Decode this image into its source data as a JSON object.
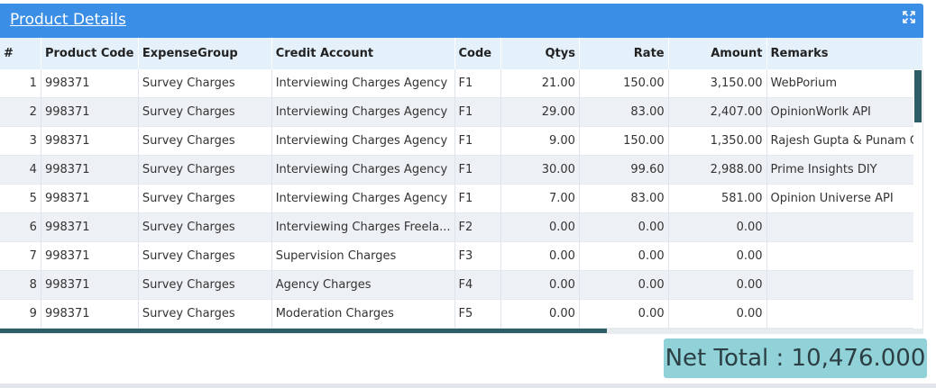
{
  "panel": {
    "title": "Product Details",
    "expand_icon": "expand-icon"
  },
  "columns": [
    "#",
    "Product Code",
    "ExpenseGroup",
    "Credit Account",
    "Code",
    "Qtys",
    "Rate",
    "Amount",
    "Remarks"
  ],
  "rows": [
    [
      "1",
      "998371",
      "Survey Charges",
      "Interviewing Charges Agency",
      "F1",
      "21.00",
      "150.00",
      "3,150.00",
      "WebPorium"
    ],
    [
      "2",
      "998371",
      "Survey Charges",
      "Interviewing Charges Agency",
      "F1",
      "29.00",
      "83.00",
      "2,407.00",
      "OpinionWorlk API"
    ],
    [
      "3",
      "998371",
      "Survey Charges",
      "Interviewing Charges Agency",
      "F1",
      "9.00",
      "150.00",
      "1,350.00",
      "Rajesh Gupta & Punam G"
    ],
    [
      "4",
      "998371",
      "Survey Charges",
      "Interviewing Charges Agency",
      "F1",
      "30.00",
      "99.60",
      "2,988.00",
      "Prime Insights DIY"
    ],
    [
      "5",
      "998371",
      "Survey Charges",
      "Interviewing Charges Agency",
      "F1",
      "7.00",
      "83.00",
      "581.00",
      "Opinion Universe API"
    ],
    [
      "6",
      "998371",
      "Survey Charges",
      "Interviewing Charges Freela...",
      "F2",
      "0.00",
      "0.00",
      "0.00",
      ""
    ],
    [
      "7",
      "998371",
      "Survey Charges",
      "Supervision Charges",
      "F3",
      "0.00",
      "0.00",
      "0.00",
      ""
    ],
    [
      "8",
      "998371",
      "Survey Charges",
      "Agency Charges",
      "F4",
      "0.00",
      "0.00",
      "0.00",
      ""
    ],
    [
      "9",
      "998371",
      "Survey Charges",
      "Moderation Charges",
      "F5",
      "0.00",
      "0.00",
      "0.00",
      ""
    ]
  ],
  "footer": {
    "net_total": "Net Total : 10,476.000"
  },
  "colors": {
    "header": "#3a8ee6",
    "table_header": "#e4f0fa",
    "scroll_thumb": "#2d5d67",
    "total_bg": "#91d1d8"
  }
}
